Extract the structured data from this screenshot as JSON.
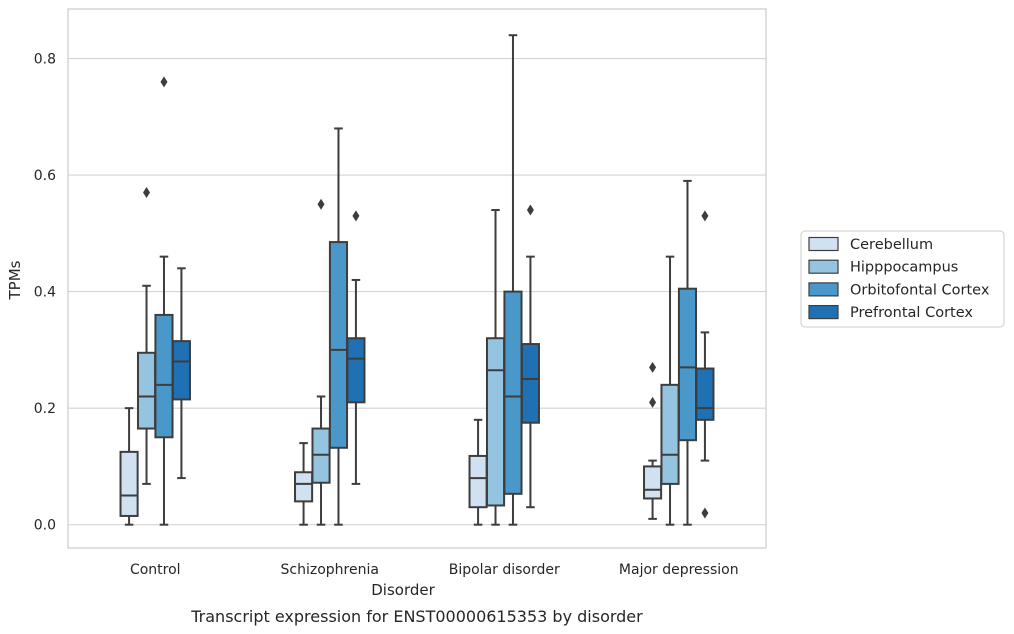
{
  "chart_data": {
    "type": "box",
    "title": "",
    "xlabel": "Disorder",
    "ylabel": "TPMs",
    "caption": "Transcript expression for ENST00000615353 by disorder",
    "ylim": [
      -0.04,
      0.885
    ],
    "yticks": [
      0.0,
      0.2,
      0.4,
      0.6,
      0.8
    ],
    "ytick_labels": [
      "0.0",
      "0.2",
      "0.4",
      "0.6",
      "0.8"
    ],
    "grid": "horizontal",
    "legend_position": "right",
    "categories": [
      "Control",
      "Schizophrenia",
      "Bipolar disorder",
      "Major depression"
    ],
    "series": [
      {
        "name": "Cerebellum",
        "color": "#d0e1f2",
        "boxes": [
          {
            "whislo": 0.0,
            "q1": 0.015,
            "med": 0.05,
            "q3": 0.125,
            "whishi": 0.2,
            "fliers": []
          },
          {
            "whislo": 0.0,
            "q1": 0.04,
            "med": 0.07,
            "q3": 0.09,
            "whishi": 0.14,
            "fliers": []
          },
          {
            "whislo": 0.0,
            "q1": 0.03,
            "med": 0.08,
            "q3": 0.118,
            "whishi": 0.18,
            "fliers": []
          },
          {
            "whislo": 0.01,
            "q1": 0.045,
            "med": 0.06,
            "q3": 0.1,
            "whishi": 0.11,
            "fliers": [
              0.21,
              0.27
            ]
          }
        ]
      },
      {
        "name": "Hipppocampus",
        "color": "#94c4df",
        "boxes": [
          {
            "whislo": 0.07,
            "q1": 0.165,
            "med": 0.22,
            "q3": 0.295,
            "whishi": 0.41,
            "fliers": [
              0.57
            ]
          },
          {
            "whislo": 0.0,
            "q1": 0.072,
            "med": 0.12,
            "q3": 0.165,
            "whishi": 0.22,
            "fliers": [
              0.55
            ]
          },
          {
            "whislo": 0.0,
            "q1": 0.033,
            "med": 0.265,
            "q3": 0.32,
            "whishi": 0.54,
            "fliers": []
          },
          {
            "whislo": 0.0,
            "q1": 0.07,
            "med": 0.12,
            "q3": 0.24,
            "whishi": 0.46,
            "fliers": []
          }
        ]
      },
      {
        "name": "Orbitofontal Cortex",
        "color": "#4a98c9",
        "boxes": [
          {
            "whislo": 0.0,
            "q1": 0.15,
            "med": 0.24,
            "q3": 0.36,
            "whishi": 0.46,
            "fliers": [
              0.76
            ]
          },
          {
            "whislo": 0.0,
            "q1": 0.132,
            "med": 0.3,
            "q3": 0.485,
            "whishi": 0.68,
            "fliers": []
          },
          {
            "whislo": 0.0,
            "q1": 0.053,
            "med": 0.22,
            "q3": 0.4,
            "whishi": 0.84,
            "fliers": []
          },
          {
            "whislo": 0.0,
            "q1": 0.145,
            "med": 0.27,
            "q3": 0.405,
            "whishi": 0.59,
            "fliers": []
          }
        ]
      },
      {
        "name": "Prefrontal Cortex",
        "color": "#2070b4",
        "boxes": [
          {
            "whislo": 0.08,
            "q1": 0.215,
            "med": 0.28,
            "q3": 0.315,
            "whishi": 0.44,
            "fliers": []
          },
          {
            "whislo": 0.07,
            "q1": 0.21,
            "med": 0.285,
            "q3": 0.32,
            "whishi": 0.42,
            "fliers": [
              0.53
            ]
          },
          {
            "whislo": 0.03,
            "q1": 0.175,
            "med": 0.25,
            "q3": 0.31,
            "whishi": 0.46,
            "fliers": [
              0.54
            ]
          },
          {
            "whislo": 0.11,
            "q1": 0.18,
            "med": 0.2,
            "q3": 0.268,
            "whishi": 0.33,
            "fliers": [
              0.02,
              0.53
            ]
          }
        ]
      }
    ]
  }
}
